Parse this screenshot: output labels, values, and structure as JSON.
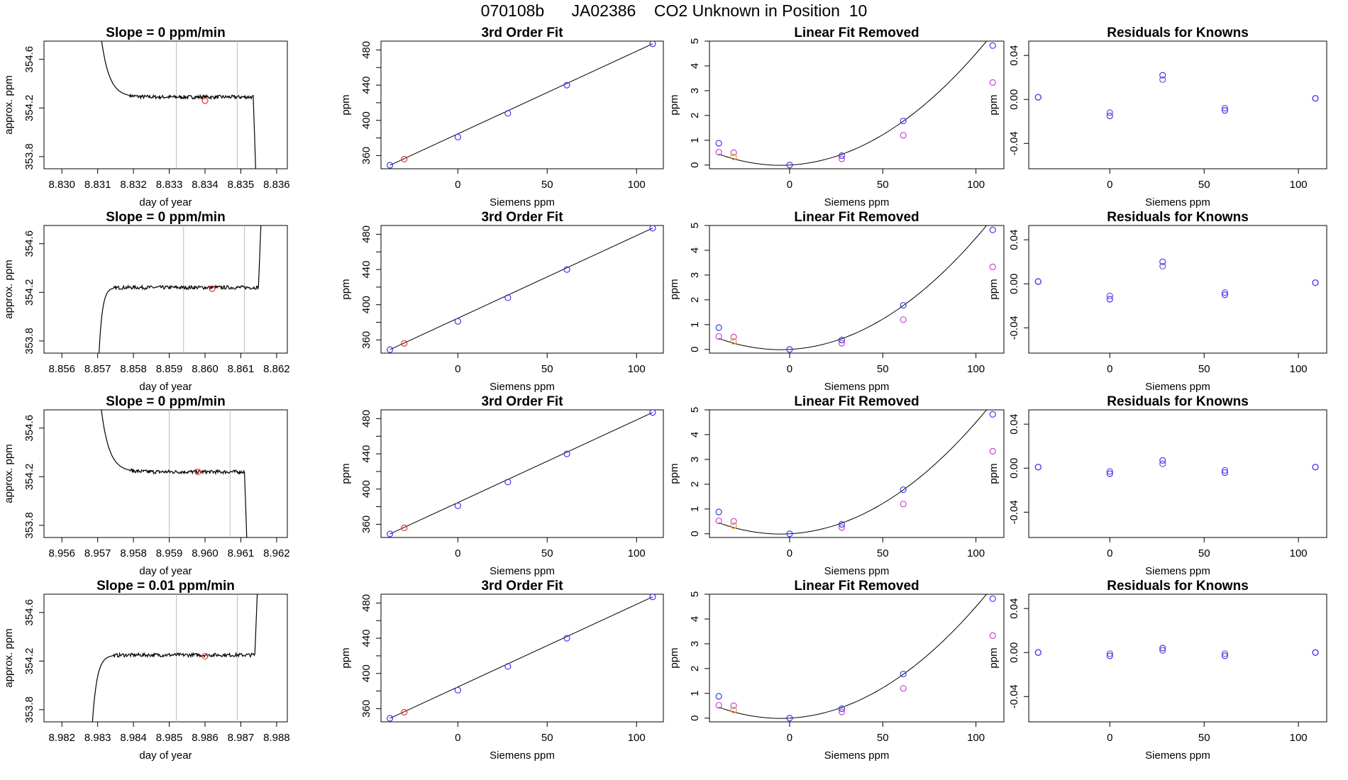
{
  "page_title": "070108b      JA02386    CO2 Unknown in Position  10",
  "colors": {
    "trace": "#000000",
    "vline": "#bbbbbb",
    "red": "#e8382f",
    "blue": "#3b3bf0",
    "magenta": "#cc44cc",
    "orange": "#f0a020",
    "purple": "#7a4ad8"
  },
  "chart_data": [
    {
      "id": "r1-trace",
      "type": "line",
      "title": "Slope =  0  ppm/min",
      "xlabel": "day of year",
      "ylabel": "approx. ppm",
      "xlim": [
        8.8295,
        8.8363
      ],
      "ylim": [
        353.7,
        354.75
      ],
      "xticks": [
        "8.830",
        "8.831",
        "8.832",
        "8.833",
        "8.834",
        "8.835",
        "8.836"
      ],
      "yticks": [
        "353.8",
        "354.2",
        "354.6"
      ],
      "vlines": [
        8.8332,
        8.8349
      ],
      "trace": {
        "start": 8.831,
        "end": 8.83545,
        "settle_end": 8.832,
        "plateau": 354.29,
        "shape": "fall"
      },
      "marker": {
        "x": 8.834,
        "y": 354.26
      }
    },
    {
      "id": "r2-trace",
      "type": "line",
      "title": "Slope =  0  ppm/min",
      "xlabel": "day of year",
      "ylabel": "approx. ppm",
      "xlim": [
        8.8555,
        8.8623
      ],
      "ylim": [
        353.7,
        354.75
      ],
      "xticks": [
        "8.856",
        "8.857",
        "8.858",
        "8.859",
        "8.860",
        "8.861",
        "8.862"
      ],
      "yticks": [
        "353.8",
        "354.2",
        "354.6"
      ],
      "vlines": [
        8.8594,
        8.8611
      ],
      "trace": {
        "start": 8.857,
        "end": 8.8616,
        "settle_end": 8.8575,
        "plateau": 354.24,
        "shape": "rise"
      },
      "marker": {
        "x": 8.8602,
        "y": 354.23
      }
    },
    {
      "id": "r3-trace",
      "type": "line",
      "title": "Slope =  0  ppm/min",
      "xlabel": "day of year",
      "ylabel": "approx. ppm",
      "xlim": [
        8.9555,
        8.9623
      ],
      "ylim": [
        353.7,
        354.75
      ],
      "xticks": [
        "8.956",
        "8.957",
        "8.958",
        "8.959",
        "8.960",
        "8.961",
        "8.962"
      ],
      "yticks": [
        "353.8",
        "354.2",
        "354.6"
      ],
      "vlines": [
        8.959,
        8.9607
      ],
      "trace": {
        "start": 8.957,
        "end": 8.9612,
        "settle_end": 8.958,
        "plateau": 354.24,
        "shape": "fall"
      },
      "marker": {
        "x": 8.9598,
        "y": 354.24
      }
    },
    {
      "id": "r4-trace",
      "type": "line",
      "title": "Slope =  0.01  ppm/min",
      "xlabel": "day of year",
      "ylabel": "approx. ppm",
      "xlim": [
        8.9815,
        8.9883
      ],
      "ylim": [
        353.7,
        354.75
      ],
      "xticks": [
        "8.982",
        "8.983",
        "8.984",
        "8.985",
        "8.986",
        "8.987",
        "8.988"
      ],
      "yticks": [
        "353.8",
        "354.2",
        "354.6"
      ],
      "vlines": [
        8.9852,
        8.9869
      ],
      "trace": {
        "start": 8.9828,
        "end": 8.9875,
        "settle_end": 8.9835,
        "plateau": 354.25,
        "shape": "rise"
      },
      "marker": {
        "x": 8.986,
        "y": 354.24
      }
    },
    {
      "id": "r1-fit",
      "type": "scatter",
      "title": "3rd Order Fit",
      "xlabel": "Siemens ppm",
      "ylabel": "ppm",
      "xlim": [
        -43,
        115
      ],
      "ylim": [
        345,
        490
      ],
      "xticks": [
        "0",
        "50",
        "100"
      ],
      "yticks": [
        "360",
        "400",
        "440",
        "480"
      ],
      "blue": [
        [
          -38,
          349
        ],
        [
          0,
          381
        ],
        [
          28,
          408
        ],
        [
          61,
          440
        ],
        [
          109,
          487
        ]
      ],
      "red": [
        [
          -30,
          356
        ]
      ],
      "line": true
    },
    {
      "id": "r2-fit",
      "type": "scatter",
      "title": "3rd Order Fit",
      "xlabel": "Siemens ppm",
      "ylabel": "ppm",
      "xlim": [
        -43,
        115
      ],
      "ylim": [
        345,
        490
      ],
      "xticks": [
        "0",
        "50",
        "100"
      ],
      "yticks": [
        "360",
        "400",
        "440",
        "480"
      ],
      "blue": [
        [
          -38,
          349
        ],
        [
          0,
          381
        ],
        [
          28,
          408
        ],
        [
          61,
          440
        ],
        [
          109,
          487
        ]
      ],
      "red": [
        [
          -30,
          356
        ]
      ],
      "line": true
    },
    {
      "id": "r3-fit",
      "type": "scatter",
      "title": "3rd Order Fit",
      "xlabel": "Siemens ppm",
      "ylabel": "ppm",
      "xlim": [
        -43,
        115
      ],
      "ylim": [
        345,
        490
      ],
      "xticks": [
        "0",
        "50",
        "100"
      ],
      "yticks": [
        "360",
        "400",
        "440",
        "480"
      ],
      "blue": [
        [
          -38,
          349
        ],
        [
          0,
          381
        ],
        [
          28,
          408
        ],
        [
          61,
          440
        ],
        [
          109,
          487
        ]
      ],
      "red": [
        [
          -30,
          356
        ]
      ],
      "line": true
    },
    {
      "id": "r4-fit",
      "type": "scatter",
      "title": "3rd Order Fit",
      "xlabel": "Siemens ppm",
      "ylabel": "ppm",
      "xlim": [
        -43,
        115
      ],
      "ylim": [
        345,
        490
      ],
      "xticks": [
        "0",
        "50",
        "100"
      ],
      "yticks": [
        "360",
        "400",
        "440",
        "480"
      ],
      "blue": [
        [
          -38,
          349
        ],
        [
          0,
          381
        ],
        [
          28,
          408
        ],
        [
          61,
          440
        ],
        [
          109,
          487
        ]
      ],
      "red": [
        [
          -30,
          356
        ]
      ],
      "line": true
    },
    {
      "id": "r1-lin",
      "type": "scatter",
      "title": "Linear Fit Removed",
      "xlabel": "Siemens ppm",
      "ylabel": "ppm",
      "xlim": [
        -43,
        115
      ],
      "ylim": [
        -0.15,
        5.0
      ],
      "xticks": [
        "0",
        "50",
        "100"
      ],
      "yticks": [
        "0",
        "1",
        "2",
        "3",
        "4",
        "5"
      ],
      "blue": [
        [
          -38,
          0.88
        ],
        [
          0,
          0.0
        ],
        [
          28,
          0.38
        ],
        [
          61,
          1.78
        ],
        [
          109,
          4.82
        ]
      ],
      "magenta": [
        [
          -38,
          0.52
        ],
        [
          -30,
          0.5
        ],
        [
          28,
          0.25
        ],
        [
          61,
          1.2
        ],
        [
          109,
          3.33
        ]
      ],
      "orange": [
        [
          -30,
          0.33
        ]
      ],
      "curve": [
        0.0,
        0.00398,
        0.00041
      ]
    },
    {
      "id": "r2-lin",
      "type": "scatter",
      "title": "Linear Fit Removed",
      "xlabel": "Siemens ppm",
      "ylabel": "ppm",
      "xlim": [
        -43,
        115
      ],
      "ylim": [
        -0.15,
        5.0
      ],
      "xticks": [
        "0",
        "50",
        "100"
      ],
      "yticks": [
        "0",
        "1",
        "2",
        "3",
        "4",
        "5"
      ],
      "blue": [
        [
          -38,
          0.88
        ],
        [
          0,
          0.0
        ],
        [
          28,
          0.38
        ],
        [
          61,
          1.78
        ],
        [
          109,
          4.82
        ]
      ],
      "magenta": [
        [
          -38,
          0.52
        ],
        [
          -30,
          0.5
        ],
        [
          28,
          0.25
        ],
        [
          61,
          1.2
        ],
        [
          109,
          3.33
        ]
      ],
      "orange": [
        [
          -30,
          0.33
        ]
      ],
      "curve": [
        0.0,
        0.00398,
        0.00041
      ]
    },
    {
      "id": "r3-lin",
      "type": "scatter",
      "title": "Linear Fit Removed",
      "xlabel": "Siemens ppm",
      "ylabel": "ppm",
      "xlim": [
        -43,
        115
      ],
      "ylim": [
        -0.15,
        5.0
      ],
      "xticks": [
        "0",
        "50",
        "100"
      ],
      "yticks": [
        "0",
        "1",
        "2",
        "3",
        "4",
        "5"
      ],
      "blue": [
        [
          -38,
          0.88
        ],
        [
          0,
          0.0
        ],
        [
          28,
          0.38
        ],
        [
          61,
          1.78
        ],
        [
          109,
          4.82
        ]
      ],
      "magenta": [
        [
          -38,
          0.52
        ],
        [
          -30,
          0.5
        ],
        [
          28,
          0.25
        ],
        [
          61,
          1.2
        ],
        [
          109,
          3.33
        ]
      ],
      "orange": [
        [
          -30,
          0.33
        ]
      ],
      "curve": [
        0.0,
        0.00398,
        0.00041
      ]
    },
    {
      "id": "r4-lin",
      "type": "scatter",
      "title": "Linear Fit Removed",
      "xlabel": "Siemens ppm",
      "ylabel": "ppm",
      "xlim": [
        -43,
        115
      ],
      "ylim": [
        -0.15,
        5.0
      ],
      "xticks": [
        "0",
        "50",
        "100"
      ],
      "yticks": [
        "0",
        "1",
        "2",
        "3",
        "4",
        "5"
      ],
      "blue": [
        [
          -38,
          0.88
        ],
        [
          0,
          0.0
        ],
        [
          28,
          0.38
        ],
        [
          61,
          1.78
        ],
        [
          109,
          4.82
        ]
      ],
      "magenta": [
        [
          -38,
          0.52
        ],
        [
          -30,
          0.5
        ],
        [
          28,
          0.25
        ],
        [
          61,
          1.2
        ],
        [
          109,
          3.33
        ]
      ],
      "orange": [
        [
          -30,
          0.33
        ]
      ],
      "curve": [
        0.0,
        0.00398,
        0.00041
      ]
    },
    {
      "id": "r1-res",
      "type": "scatter",
      "title": "Residuals for Knowns",
      "xlabel": "Siemens ppm",
      "ylabel": "ppm",
      "xlim": [
        -43,
        115
      ],
      "ylim": [
        -0.063,
        0.053
      ],
      "xticks": [
        "0",
        "50",
        "100"
      ],
      "yticks": [
        "-0.04",
        "0.00",
        "0.04"
      ],
      "blue": [
        [
          -38,
          0.002
        ],
        [
          0,
          -0.015
        ],
        [
          28,
          0.022
        ],
        [
          61,
          -0.01
        ],
        [
          109,
          0.001
        ]
      ],
      "purple": [
        [
          -38,
          0.002
        ],
        [
          0,
          -0.012
        ],
        [
          28,
          0.018
        ],
        [
          61,
          -0.008
        ],
        [
          109,
          0.001
        ]
      ]
    },
    {
      "id": "r2-res",
      "type": "scatter",
      "title": "Residuals for Knowns",
      "xlabel": "Siemens ppm",
      "ylabel": "ppm",
      "xlim": [
        -43,
        115
      ],
      "ylim": [
        -0.063,
        0.053
      ],
      "xticks": [
        "0",
        "50",
        "100"
      ],
      "yticks": [
        "-0.04",
        "0.00",
        "0.04"
      ],
      "blue": [
        [
          -38,
          0.002
        ],
        [
          0,
          -0.014
        ],
        [
          28,
          0.02
        ],
        [
          61,
          -0.01
        ],
        [
          109,
          0.001
        ]
      ],
      "purple": [
        [
          -38,
          0.002
        ],
        [
          0,
          -0.011
        ],
        [
          28,
          0.016
        ],
        [
          61,
          -0.008
        ],
        [
          109,
          0.001
        ]
      ]
    },
    {
      "id": "r3-res",
      "type": "scatter",
      "title": "Residuals for Knowns",
      "xlabel": "Siemens ppm",
      "ylabel": "ppm",
      "xlim": [
        -43,
        115
      ],
      "ylim": [
        -0.063,
        0.053
      ],
      "xticks": [
        "0",
        "50",
        "100"
      ],
      "yticks": [
        "-0.04",
        "0.00",
        "0.04"
      ],
      "blue": [
        [
          -38,
          0.001
        ],
        [
          0,
          -0.005
        ],
        [
          28,
          0.007
        ],
        [
          61,
          -0.004
        ],
        [
          109,
          0.001
        ]
      ],
      "purple": [
        [
          -38,
          0.001
        ],
        [
          0,
          -0.003
        ],
        [
          28,
          0.004
        ],
        [
          61,
          -0.002
        ],
        [
          109,
          0.001
        ]
      ]
    },
    {
      "id": "r4-res",
      "type": "scatter",
      "title": "Residuals for Knowns",
      "xlabel": "Siemens ppm",
      "ylabel": "ppm",
      "xlim": [
        -43,
        115
      ],
      "ylim": [
        -0.063,
        0.053
      ],
      "xticks": [
        "0",
        "50",
        "100"
      ],
      "yticks": [
        "-0.04",
        "0.00",
        "0.04"
      ],
      "blue": [
        [
          -38,
          0.0
        ],
        [
          0,
          -0.003
        ],
        [
          28,
          0.004
        ],
        [
          61,
          -0.003
        ],
        [
          109,
          0.0
        ]
      ],
      "purple": [
        [
          -38,
          0.0
        ],
        [
          0,
          -0.001
        ],
        [
          28,
          0.002
        ],
        [
          61,
          -0.001
        ],
        [
          109,
          0.0
        ]
      ]
    }
  ]
}
